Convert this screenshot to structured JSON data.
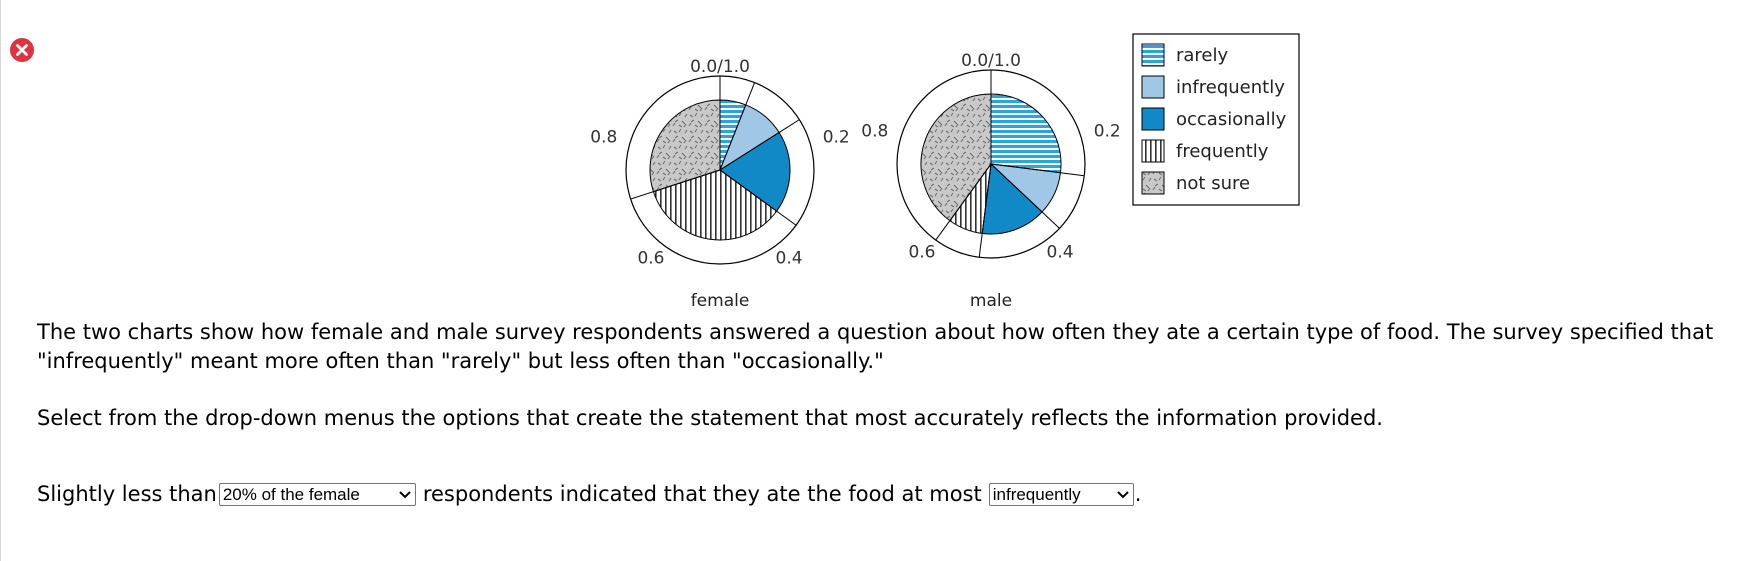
{
  "colors": {
    "rarely": "#2aa6dc",
    "infrequently": "#a0c8e6",
    "occasionally": "#1189c6",
    "frequently": "#ffffff",
    "not_sure": "#c8c8c8",
    "close": "#e0333f"
  },
  "chart_data": {
    "type": "pie",
    "charts": [
      {
        "label": "female",
        "slices": [
          {
            "category": "rarely",
            "value": 0.06
          },
          {
            "category": "infrequently",
            "value": 0.1
          },
          {
            "category": "occasionally",
            "value": 0.19
          },
          {
            "category": "frequently",
            "value": 0.35
          },
          {
            "category": "not sure",
            "value": 0.3
          }
        ]
      },
      {
        "label": "male",
        "slices": [
          {
            "category": "rarely",
            "value": 0.27
          },
          {
            "category": "infrequently",
            "value": 0.1
          },
          {
            "category": "occasionally",
            "value": 0.15
          },
          {
            "category": "frequently",
            "value": 0.08
          },
          {
            "category": "not sure",
            "value": 0.4
          }
        ]
      }
    ],
    "ring_labels": [
      "0.0/1.0",
      "0.2",
      "0.4",
      "0.6",
      "0.8"
    ],
    "legend": [
      "rarely",
      "infrequently",
      "occasionally",
      "frequently",
      "not sure"
    ],
    "legend_position": "right"
  },
  "text": {
    "p1_line1": "The two charts show how female and male survey respondents answered a question about how often they ate a certain type of food. The survey specified that",
    "p1_line2": "\"infrequently\" meant more often than \"rarely\" but less often than \"occasionally.\"",
    "p2": "Select from the drop-down menus the options that create the statement that most accurately reflects the information provided.",
    "p3_a": "Slightly less than",
    "p3_b": "respondents indicated that they ate the food at most",
    "p3_c": "."
  },
  "dropdowns": {
    "first_selected": "20% of the female",
    "second_selected": "infrequently"
  }
}
